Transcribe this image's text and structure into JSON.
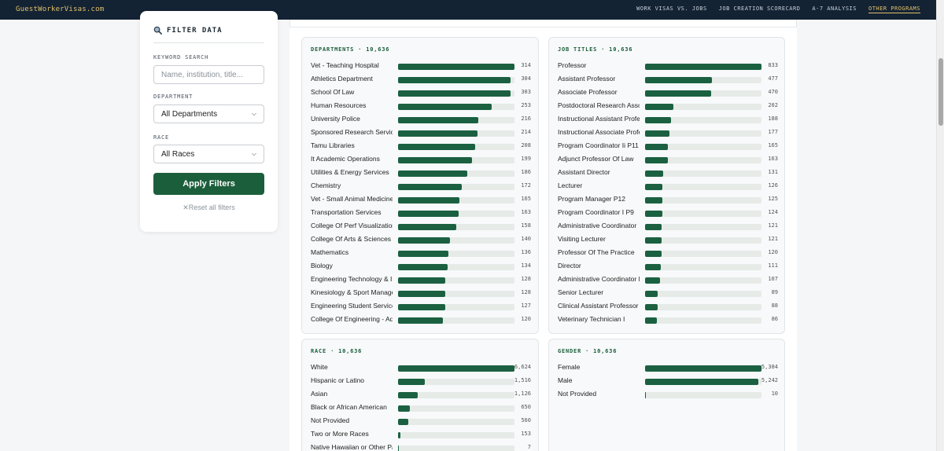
{
  "nav": {
    "logo": "GuestWorkerVisas.com",
    "links": [
      "WORK VISAS VS. JOBS",
      "JOB CREATION SCORECARD",
      "A-7 ANALYSIS",
      "OTHER PROGRAMS"
    ]
  },
  "sidebar": {
    "title": "FILTER DATA",
    "keyword_label": "KEYWORD SEARCH",
    "keyword_placeholder": "Name, institution, title...",
    "department_label": "DEPARTMENT",
    "department_value": "All Departments",
    "race_label": "RACE",
    "race_value": "All Races",
    "apply_label": "Apply Filters",
    "reset_label": "Reset all filters"
  },
  "panels": {
    "departments": {
      "title": "DEPARTMENTS · 10,636",
      "max": 314,
      "rows": [
        {
          "label": "Vet - Teaching Hospital",
          "value": 314,
          "display": "314"
        },
        {
          "label": "Athletics Department",
          "value": 304,
          "display": "304"
        },
        {
          "label": "School Of Law",
          "value": 303,
          "display": "303"
        },
        {
          "label": "Human Resources",
          "value": 253,
          "display": "253"
        },
        {
          "label": "University Police",
          "value": 216,
          "display": "216"
        },
        {
          "label": "Sponsored Research Services",
          "value": 214,
          "display": "214"
        },
        {
          "label": "Tamu Libraries",
          "value": 208,
          "display": "208"
        },
        {
          "label": "It Academic Operations",
          "value": 199,
          "display": "199"
        },
        {
          "label": "Utilities & Energy Services",
          "value": 186,
          "display": "186"
        },
        {
          "label": "Chemistry",
          "value": 172,
          "display": "172"
        },
        {
          "label": "Vet - Small Animal Medicine",
          "value": 165,
          "display": "165"
        },
        {
          "label": "Transportation Services",
          "value": 163,
          "display": "163"
        },
        {
          "label": "College Of Perf Visualization",
          "value": 158,
          "display": "158"
        },
        {
          "label": "College Of Arts & Sciences",
          "value": 140,
          "display": "140"
        },
        {
          "label": "Mathematics",
          "value": 136,
          "display": "136"
        },
        {
          "label": "Biology",
          "value": 134,
          "display": "134"
        },
        {
          "label": "Engineering Technology & Industrial",
          "value": 128,
          "display": "128"
        },
        {
          "label": "Kinesiology & Sport Management",
          "value": 128,
          "display": "128"
        },
        {
          "label": "Engineering Student Services",
          "value": 127,
          "display": "127"
        },
        {
          "label": "College Of Engineering - Admin",
          "value": 120,
          "display": "120"
        }
      ]
    },
    "job_titles": {
      "title": "JOB TITLES · 10,636",
      "max": 833,
      "rows": [
        {
          "label": "Professor",
          "value": 833,
          "display": "833"
        },
        {
          "label": "Assistant Professor",
          "value": 477,
          "display": "477"
        },
        {
          "label": "Associate Professor",
          "value": 470,
          "display": "470"
        },
        {
          "label": "Postdoctoral Research Associate",
          "value": 202,
          "display": "202"
        },
        {
          "label": "Instructional Assistant Professor",
          "value": 188,
          "display": "188"
        },
        {
          "label": "Instructional Associate Professor",
          "value": 177,
          "display": "177"
        },
        {
          "label": "Program Coordinator Ii P11",
          "value": 165,
          "display": "165"
        },
        {
          "label": "Adjunct Professor Of Law",
          "value": 163,
          "display": "163"
        },
        {
          "label": "Assistant Director",
          "value": 131,
          "display": "131"
        },
        {
          "label": "Lecturer",
          "value": 126,
          "display": "126"
        },
        {
          "label": "Program Manager P12",
          "value": 125,
          "display": "125"
        },
        {
          "label": "Program Coordinator I P9",
          "value": 124,
          "display": "124"
        },
        {
          "label": "Administrative Coordinator",
          "value": 121,
          "display": "121"
        },
        {
          "label": "Visiting Lecturer",
          "value": 121,
          "display": "121"
        },
        {
          "label": "Professor Of The Practice",
          "value": 120,
          "display": "120"
        },
        {
          "label": "Director",
          "value": 111,
          "display": "111"
        },
        {
          "label": "Administrative Coordinator II",
          "value": 107,
          "display": "107"
        },
        {
          "label": "Senior Lecturer",
          "value": 89,
          "display": "89"
        },
        {
          "label": "Clinical Assistant Professor",
          "value": 88,
          "display": "88"
        },
        {
          "label": "Veterinary Technician I",
          "value": 86,
          "display": "86"
        }
      ]
    },
    "race": {
      "title": "RACE · 10,636",
      "max": 6624,
      "rows": [
        {
          "label": "White",
          "value": 6624,
          "display": "6,624"
        },
        {
          "label": "Hispanic or Latino",
          "value": 1516,
          "display": "1,516"
        },
        {
          "label": "Asian",
          "value": 1126,
          "display": "1,126"
        },
        {
          "label": "Black or African American",
          "value": 650,
          "display": "650"
        },
        {
          "label": "Not Provided",
          "value": 560,
          "display": "560"
        },
        {
          "label": "Two or More Races",
          "value": 153,
          "display": "153"
        },
        {
          "label": "Native Hawaiian or Other Pacific Islander",
          "value": 7,
          "display": "7"
        }
      ]
    },
    "gender": {
      "title": "GENDER · 10,636",
      "max": 5384,
      "rows": [
        {
          "label": "Female",
          "value": 5384,
          "display": "5,384"
        },
        {
          "label": "Male",
          "value": 5242,
          "display": "5,242"
        },
        {
          "label": "Not Provided",
          "value": 10,
          "display": "10"
        }
      ]
    }
  }
}
